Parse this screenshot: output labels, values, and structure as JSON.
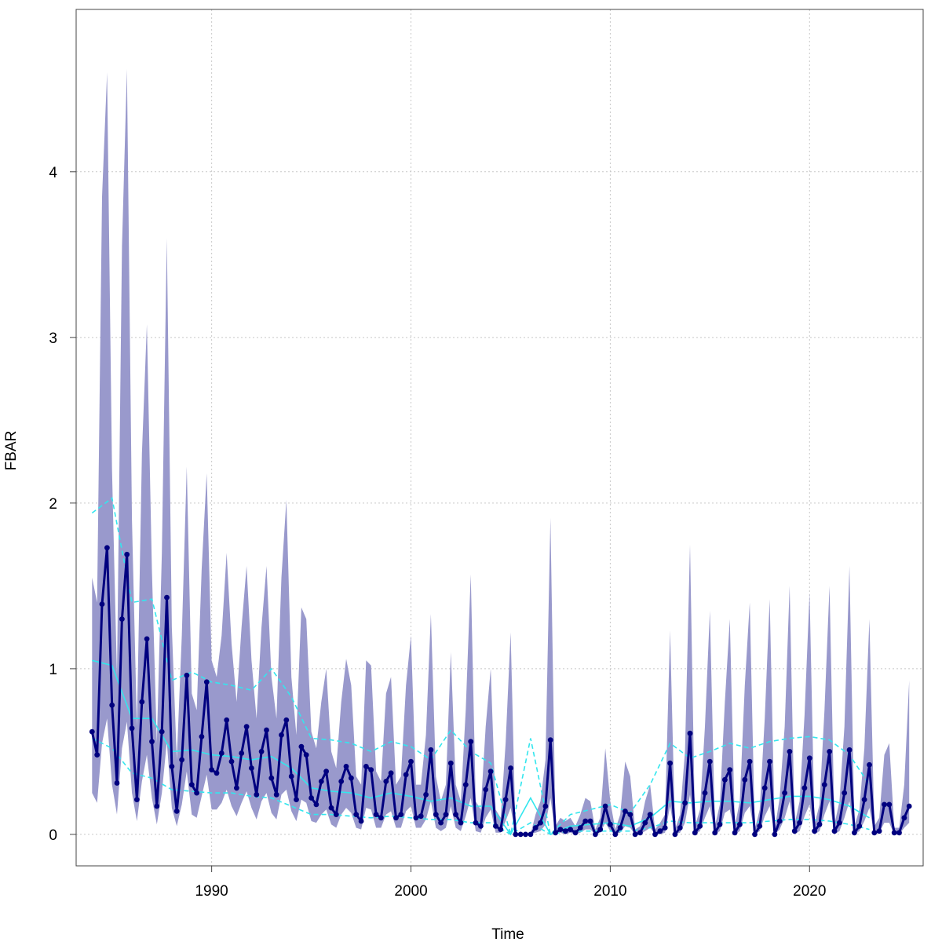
{
  "chart_data": {
    "type": "line",
    "title": "",
    "xlabel": "Time",
    "ylabel": "FBAR",
    "xlim": [
      1983.2,
      2025.7
    ],
    "ylim": [
      -0.19,
      4.98
    ],
    "x_ticks": [
      1990,
      2000,
      2010,
      2020
    ],
    "y_ticks": [
      0,
      1,
      2,
      3,
      4
    ],
    "x_tick_labels": [
      "1990",
      "2000",
      "2010",
      "2020"
    ],
    "y_tick_labels": [
      "0",
      "1",
      "2",
      "3",
      "4"
    ],
    "grid": true,
    "legend": "none",
    "colors": {
      "band": "#9999cc",
      "main": "#00007f",
      "smooth": "#33e6ee",
      "grid": "#c8c8c8",
      "axis": "#444444"
    },
    "quarterly": {
      "x_start": 1984.0,
      "x_step": 0.25,
      "fbar": [
        0.62,
        0.48,
        1.39,
        1.73,
        0.78,
        0.31,
        1.3,
        1.69,
        0.64,
        0.21,
        0.8,
        1.18,
        0.56,
        0.17,
        0.62,
        1.43,
        0.41,
        0.14,
        0.45,
        0.96,
        0.3,
        0.25,
        0.59,
        0.92,
        0.39,
        0.37,
        0.49,
        0.69,
        0.44,
        0.28,
        0.49,
        0.65,
        0.4,
        0.24,
        0.5,
        0.63,
        0.34,
        0.24,
        0.6,
        0.69,
        0.35,
        0.21,
        0.53,
        0.48,
        0.22,
        0.18,
        0.32,
        0.38,
        0.16,
        0.12,
        0.32,
        0.41,
        0.34,
        0.12,
        0.08,
        0.41,
        0.39,
        0.12,
        0.1,
        0.32,
        0.37,
        0.1,
        0.12,
        0.36,
        0.44,
        0.1,
        0.11,
        0.24,
        0.51,
        0.12,
        0.07,
        0.12,
        0.43,
        0.12,
        0.07,
        0.3,
        0.56,
        0.07,
        0.05,
        0.27,
        0.38,
        0.05,
        0.03,
        0.21,
        0.4,
        0.0,
        0.0,
        0.0,
        0.0,
        0.04,
        0.07,
        0.17,
        0.57,
        0.01,
        0.03,
        0.02,
        0.03,
        0.01,
        0.04,
        0.08,
        0.08,
        0.0,
        0.03,
        0.17,
        0.06,
        0.0,
        0.04,
        0.14,
        0.12,
        0.0,
        0.01,
        0.07,
        0.12,
        0.0,
        0.02,
        0.04,
        0.43,
        0.0,
        0.04,
        0.19,
        0.61,
        0.01,
        0.05,
        0.25,
        0.44,
        0.01,
        0.06,
        0.33,
        0.39,
        0.01,
        0.06,
        0.33,
        0.44,
        0.0,
        0.05,
        0.28,
        0.44,
        0.0,
        0.08,
        0.25,
        0.5,
        0.02,
        0.07,
        0.28,
        0.46,
        0.02,
        0.06,
        0.3,
        0.5,
        0.02,
        0.07,
        0.25,
        0.51,
        0.01,
        0.05,
        0.21,
        0.42,
        0.01,
        0.02,
        0.18,
        0.18,
        0.01,
        0.01,
        0.1,
        0.17
      ],
      "upper": [
        1.55,
        1.4,
        3.85,
        4.6,
        2.2,
        0.95,
        3.55,
        4.62,
        1.9,
        0.65,
        2.3,
        3.08,
        1.6,
        0.55,
        1.7,
        3.6,
        1.25,
        0.45,
        1.2,
        2.22,
        0.85,
        0.75,
        1.6,
        2.18,
        1.05,
        0.95,
        1.2,
        1.7,
        1.15,
        0.8,
        1.25,
        1.62,
        1.05,
        0.7,
        1.25,
        1.62,
        0.95,
        0.7,
        1.55,
        2.02,
        0.95,
        0.6,
        1.37,
        1.3,
        0.62,
        0.52,
        0.8,
        1.0,
        0.5,
        0.4,
        0.8,
        1.06,
        0.9,
        0.35,
        0.3,
        1.05,
        1.02,
        0.38,
        0.32,
        0.85,
        0.95,
        0.3,
        0.35,
        0.9,
        1.2,
        0.3,
        0.3,
        0.6,
        1.33,
        0.35,
        0.2,
        0.3,
        1.1,
        0.3,
        0.2,
        0.75,
        1.57,
        0.2,
        0.15,
        0.65,
        1.0,
        0.15,
        0.1,
        0.55,
        1.22,
        0.0,
        0.0,
        0.0,
        0.0,
        0.12,
        0.2,
        0.45,
        1.91,
        0.05,
        0.1,
        0.08,
        0.1,
        0.05,
        0.12,
        0.22,
        0.2,
        0.03,
        0.1,
        0.52,
        0.2,
        0.03,
        0.12,
        0.44,
        0.35,
        0.03,
        0.05,
        0.2,
        0.3,
        0.03,
        0.07,
        0.12,
        1.23,
        0.03,
        0.12,
        0.5,
        1.75,
        0.05,
        0.15,
        0.65,
        1.35,
        0.05,
        0.18,
        0.8,
        1.3,
        0.05,
        0.2,
        0.9,
        1.4,
        0.03,
        0.15,
        0.7,
        1.42,
        0.03,
        0.22,
        0.65,
        1.5,
        0.06,
        0.2,
        0.72,
        1.46,
        0.06,
        0.18,
        0.75,
        1.5,
        0.06,
        0.2,
        0.65,
        1.62,
        0.05,
        0.15,
        0.52,
        1.3,
        0.05,
        0.1,
        0.48,
        0.55,
        0.04,
        0.04,
        0.3,
        0.93
      ],
      "lower": [
        0.25,
        0.19,
        0.55,
        0.7,
        0.3,
        0.12,
        0.52,
        0.68,
        0.25,
        0.08,
        0.32,
        0.48,
        0.22,
        0.06,
        0.25,
        0.56,
        0.16,
        0.05,
        0.18,
        0.38,
        0.12,
        0.1,
        0.23,
        0.36,
        0.15,
        0.15,
        0.19,
        0.27,
        0.17,
        0.11,
        0.19,
        0.26,
        0.16,
        0.09,
        0.2,
        0.25,
        0.13,
        0.09,
        0.24,
        0.27,
        0.14,
        0.08,
        0.21,
        0.19,
        0.08,
        0.07,
        0.12,
        0.15,
        0.06,
        0.04,
        0.12,
        0.16,
        0.13,
        0.04,
        0.03,
        0.16,
        0.15,
        0.04,
        0.04,
        0.12,
        0.14,
        0.04,
        0.04,
        0.14,
        0.17,
        0.04,
        0.04,
        0.09,
        0.2,
        0.04,
        0.02,
        0.04,
        0.17,
        0.04,
        0.02,
        0.11,
        0.22,
        0.02,
        0.01,
        0.1,
        0.15,
        0.01,
        0.01,
        0.08,
        0.16,
        0.0,
        0.0,
        0.0,
        0.0,
        0.01,
        0.02,
        0.06,
        0.22,
        0.0,
        0.01,
        0.0,
        0.01,
        0.0,
        0.01,
        0.03,
        0.03,
        0.0,
        0.01,
        0.07,
        0.02,
        0.0,
        0.01,
        0.05,
        0.04,
        0.0,
        0.0,
        0.02,
        0.04,
        0.0,
        0.0,
        0.01,
        0.17,
        0.0,
        0.01,
        0.07,
        0.24,
        0.0,
        0.02,
        0.1,
        0.17,
        0.0,
        0.02,
        0.13,
        0.15,
        0.0,
        0.02,
        0.13,
        0.17,
        0.0,
        0.02,
        0.11,
        0.17,
        0.0,
        0.03,
        0.1,
        0.2,
        0.0,
        0.02,
        0.11,
        0.18,
        0.0,
        0.02,
        0.12,
        0.2,
        0.0,
        0.02,
        0.1,
        0.2,
        0.0,
        0.02,
        0.08,
        0.16,
        0.0,
        0.01,
        0.07,
        0.07,
        0.0,
        0.0,
        0.04,
        0.07
      ]
    },
    "smooth": {
      "x": [
        1984.0,
        1985.0,
        1986.0,
        1987.0,
        1988.0,
        1989.0,
        1990.0,
        1991.0,
        1992.0,
        1993.0,
        1994.0,
        1995.0,
        1996.0,
        1997.0,
        1998.0,
        1999.0,
        2000.0,
        2001.0,
        2002.0,
        2003.0,
        2004.0,
        2005.0,
        2006.0,
        2007.0,
        2008.0,
        2009.0,
        2010.0,
        2011.0,
        2012.0,
        2013.0,
        2014.0,
        2015.0,
        2016.0,
        2017.0,
        2018.0,
        2019.0,
        2020.0,
        2021.0,
        2022.0,
        2023.0
      ],
      "center": [
        1.05,
        1.02,
        0.7,
        0.7,
        0.5,
        0.51,
        0.48,
        0.47,
        0.45,
        0.47,
        0.4,
        0.28,
        0.26,
        0.25,
        0.22,
        0.25,
        0.23,
        0.2,
        0.22,
        0.17,
        0.17,
        0.0,
        0.22,
        0.0,
        0.05,
        0.06,
        0.07,
        0.05,
        0.1,
        0.2,
        0.19,
        0.2,
        0.2,
        0.19,
        0.21,
        0.23,
        0.23,
        0.21,
        0.17,
        0.1
      ],
      "upper": [
        1.94,
        2.03,
        1.4,
        1.42,
        0.93,
        0.98,
        0.92,
        0.9,
        0.87,
        1.0,
        0.83,
        0.58,
        0.57,
        0.55,
        0.5,
        0.56,
        0.53,
        0.45,
        0.63,
        0.5,
        0.43,
        0.0,
        0.58,
        0.0,
        0.12,
        0.15,
        0.18,
        0.13,
        0.3,
        0.55,
        0.46,
        0.5,
        0.55,
        0.52,
        0.56,
        0.58,
        0.59,
        0.57,
        0.48,
        0.3
      ],
      "lower": [
        0.58,
        0.52,
        0.37,
        0.34,
        0.27,
        0.26,
        0.25,
        0.25,
        0.23,
        0.22,
        0.17,
        0.12,
        0.12,
        0.11,
        0.1,
        0.11,
        0.1,
        0.09,
        0.09,
        0.07,
        0.07,
        0.0,
        0.07,
        0.0,
        0.02,
        0.02,
        0.02,
        0.02,
        0.04,
        0.08,
        0.07,
        0.07,
        0.07,
        0.07,
        0.08,
        0.09,
        0.09,
        0.08,
        0.06,
        0.03
      ]
    }
  }
}
